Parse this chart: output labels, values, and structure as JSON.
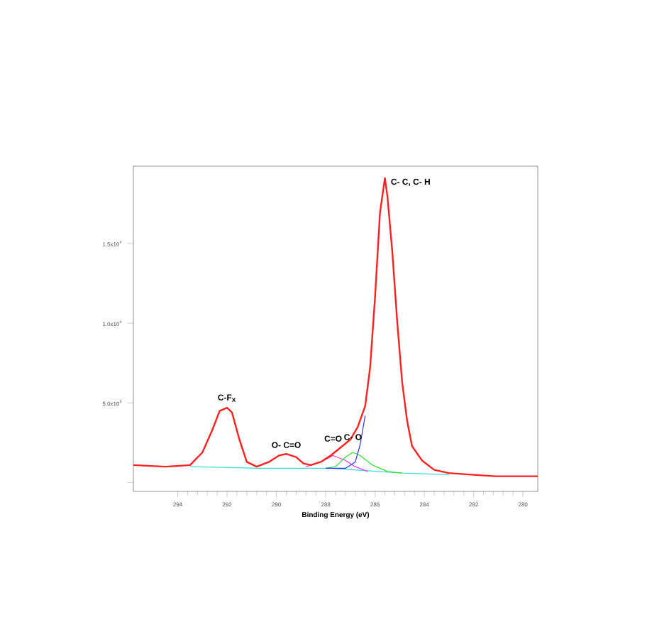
{
  "chart_data": {
    "type": "line",
    "xlabel": "Binding Energy (eV)",
    "xlim": [
      295.8,
      279.4
    ],
    "ylim": [
      -550,
      19850
    ],
    "xticks": [
      294,
      292,
      290,
      288,
      286,
      284,
      282,
      280
    ],
    "yticks": [
      {
        "value": 0,
        "label": null
      },
      {
        "value": 5000,
        "label": "5.0x10$^{3}$"
      },
      {
        "value": 10000,
        "label": "1.0x10$^{4}$"
      },
      {
        "value": 15000,
        "label": "1.5x10$^{4}$"
      }
    ],
    "grid": false,
    "marker": "none",
    "line_style": "solid",
    "series": [
      {
        "color": "#30e0e0",
        "x": [
          293.5,
          290.7,
          287.8,
          284.9,
          283.0
        ],
        "values": [
          1000,
          900,
          900,
          600,
          500
        ]
      },
      {
        "color": "#ff30ff",
        "x": [
          288.8,
          288.2,
          287.7,
          287.2,
          286.8,
          286.3
        ],
        "values": [
          1000,
          1300,
          1700,
          1400,
          1000,
          700
        ]
      },
      {
        "color": "#30e030",
        "x": [
          288.0,
          287.6,
          287.2,
          286.9,
          286.6,
          286.1,
          285.5,
          284.9
        ],
        "values": [
          900,
          1000,
          1600,
          1900,
          1700,
          1100,
          700,
          600
        ]
      },
      {
        "color": "#3030ff",
        "x": [
          288.0,
          287.2,
          286.8,
          286.6,
          286.4
        ],
        "values": [
          900,
          900,
          1300,
          2400,
          4200
        ]
      },
      {
        "color": "#ff2020",
        "x": [
          295.8,
          294.5,
          293.5,
          293.0,
          292.6,
          292.3,
          292.0,
          291.8,
          291.5,
          291.2,
          290.8,
          290.3,
          289.9,
          289.6,
          289.2,
          288.9,
          288.6,
          288.2,
          287.8,
          287.4,
          287.0,
          286.7,
          286.4,
          286.2,
          286.0,
          285.8,
          285.6,
          285.5,
          285.3,
          285.1,
          284.9,
          284.7,
          284.5,
          284.1,
          283.6,
          283.0,
          282.1,
          281.1,
          279.4
        ],
        "values": [
          1100,
          1000,
          1100,
          1900,
          3300,
          4500,
          4700,
          4400,
          2700,
          1300,
          1000,
          1300,
          1700,
          1800,
          1600,
          1200,
          1100,
          1300,
          1700,
          2200,
          2700,
          3500,
          4800,
          7200,
          11600,
          16900,
          19100,
          18000,
          14500,
          10100,
          6300,
          3900,
          2300,
          1400,
          800,
          600,
          500,
          400,
          400
        ]
      }
    ],
    "annotations": [
      {
        "text": "C-F$_{x}$",
        "x": 292.0,
        "y": 4700
      },
      {
        "text": "O- C=O",
        "x": 289.6,
        "y": 1800
      },
      {
        "text": "C=O",
        "x": 287.7,
        "y": 2200
      },
      {
        "text": "C- O",
        "x": 286.9,
        "y": 2300
      },
      {
        "text": "C- C, C- H",
        "x": 285.6,
        "y": 19100
      }
    ]
  }
}
